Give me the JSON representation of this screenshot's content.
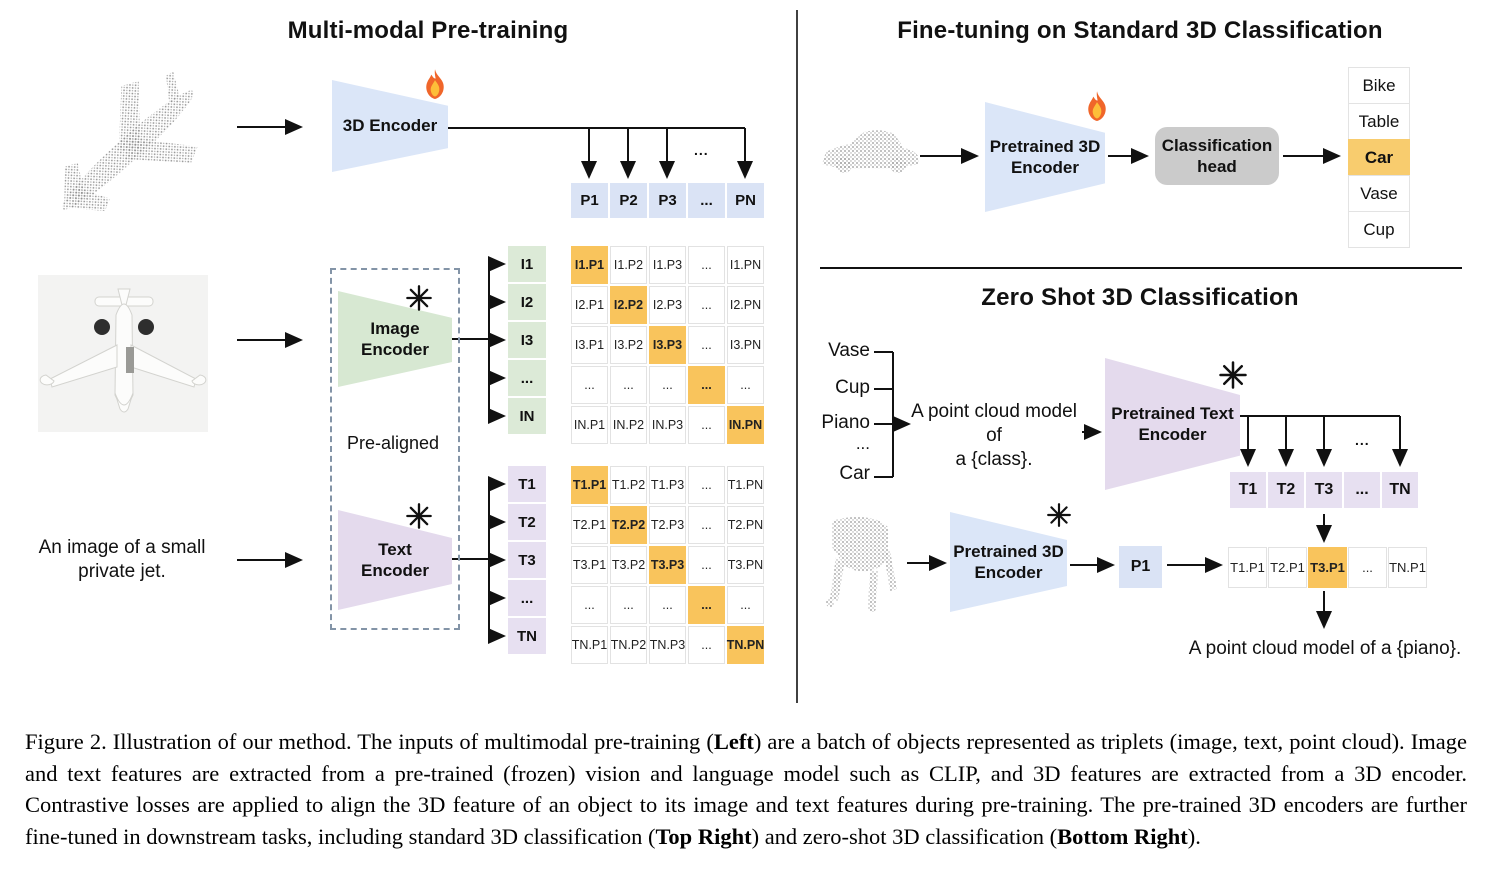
{
  "colors": {
    "blue": "#dbe6f8",
    "blue_cell": "#dae3f5",
    "green": "#d7e8d2",
    "green_cell": "#dcead7",
    "purple": "#e4daed",
    "purple_cell": "#e7e0f1",
    "orange": "#f9c45c",
    "orange_soft": "#f8cc6e",
    "gray_head": "#cbcbcb"
  },
  "left": {
    "title": "Multi-modal Pre-training",
    "encoder3d_label": "3D Encoder",
    "image_encoder_label": "Image\nEncoder",
    "text_encoder_label": "Text\nEncoder",
    "pre_aligned": "Pre-aligned",
    "input_text": "An image of a small\nprivate jet.",
    "dots": "...",
    "p_row": [
      "P1",
      "P2",
      "P3",
      "...",
      "PN"
    ],
    "i_labels": [
      "I1",
      "I2",
      "I3",
      "...",
      "IN"
    ],
    "t_labels": [
      "T1",
      "T2",
      "T3",
      "...",
      "TN"
    ],
    "i_matrix": [
      [
        "I1.P1",
        "I1.P2",
        "I1.P3",
        "...",
        "I1.PN"
      ],
      [
        "I2.P1",
        "I2.P2",
        "I2.P3",
        "...",
        "I2.PN"
      ],
      [
        "I3.P1",
        "I3.P2",
        "I3.P3",
        "...",
        "I3.PN"
      ],
      [
        "...",
        "...",
        "...",
        "...",
        "..."
      ],
      [
        "IN.P1",
        "IN.P2",
        "IN.P3",
        "...",
        "IN.PN"
      ]
    ],
    "t_matrix": [
      [
        "T1.P1",
        "T1.P2",
        "T1.P3",
        "...",
        "T1.PN"
      ],
      [
        "T2.P1",
        "T2.P2",
        "T2.P3",
        "...",
        "T2.PN"
      ],
      [
        "T3.P1",
        "T3.P2",
        "T3.P3",
        "...",
        "T3.PN"
      ],
      [
        "...",
        "...",
        "...",
        "...",
        "..."
      ],
      [
        "TN.P1",
        "TN.P2",
        "TN.P3",
        "...",
        "TN.PN"
      ]
    ]
  },
  "top_right": {
    "title": "Fine-tuning on Standard 3D Classification",
    "encoder_label": "Pretrained 3D\nEncoder",
    "head_label": "Classification\nhead",
    "classes": [
      {
        "label": "Bike",
        "highlight": false
      },
      {
        "label": "Table",
        "highlight": false
      },
      {
        "label": "Car",
        "highlight": true
      },
      {
        "label": "Vase",
        "highlight": false
      },
      {
        "label": "Cup",
        "highlight": false
      }
    ]
  },
  "bottom_right": {
    "title": "Zero Shot 3D Classification",
    "class_list": [
      "Vase",
      "Cup",
      "Piano",
      "...",
      "Car"
    ],
    "prompt": "A point cloud model of\na {class}.",
    "text_encoder_label": "Pretrained Text\nEncoder",
    "encoder_label": "Pretrained 3D\nEncoder",
    "t_row": [
      "T1",
      "T2",
      "T3",
      "...",
      "TN"
    ],
    "p1_label": "P1",
    "dots": "...",
    "tp_row": [
      {
        "label": "T1.P1",
        "highlight": false
      },
      {
        "label": "T2.P1",
        "highlight": false
      },
      {
        "label": "T3.P1",
        "highlight": true
      },
      {
        "label": "...",
        "highlight": false
      },
      {
        "label": "TN.P1",
        "highlight": false
      }
    ],
    "result_text": "A point cloud model of a {piano}."
  },
  "caption": {
    "segments": [
      {
        "text": "Figure 2. Illustration of our method. The inputs of multimodal pre-training (",
        "bold": false
      },
      {
        "text": "Left",
        "bold": true
      },
      {
        "text": ") are a batch of objects represented as triplets (image, text, point cloud). Image and text features are extracted from a pre-trained (frozen) vision and language model such as CLIP, and 3D features are extracted from a 3D encoder. Contrastive losses are applied to align the 3D feature of an object to its image and text features during pre-training. The pre-trained 3D encoders are further fine-tuned in downstream tasks, including standard 3D classification (",
        "bold": false
      },
      {
        "text": "Top Right",
        "bold": true
      },
      {
        "text": ") and zero-shot 3D classification (",
        "bold": false
      },
      {
        "text": "Bottom Right",
        "bold": true
      },
      {
        "text": ").",
        "bold": false
      }
    ]
  }
}
